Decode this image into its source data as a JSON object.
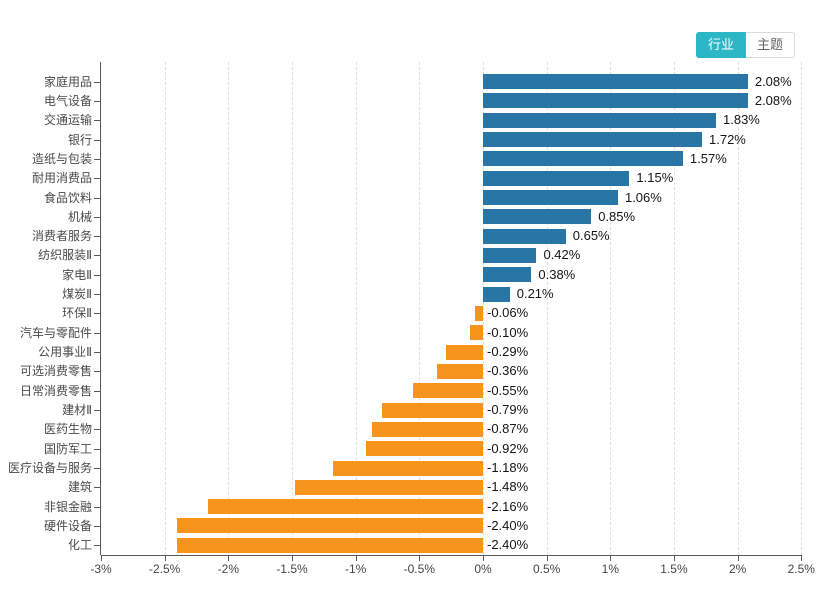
{
  "toggle": {
    "industry_label": "行业",
    "theme_label": "主题"
  },
  "colors": {
    "positive_bar": "#2776A6",
    "negative_bar": "#F7941E",
    "toggle_active_bg": "#2BB7C5",
    "axis_line": "#595959",
    "grid_line": "#e0e0e0",
    "category_text": "#4a4a4a",
    "value_text": "#151515",
    "tick_text": "#454545"
  },
  "chart_data": {
    "type": "bar",
    "orientation": "horizontal",
    "title": "",
    "xlabel": "",
    "ylabel": "",
    "xlim": [
      -3,
      2.5
    ],
    "grid": "dashed-vertical",
    "legend": "none",
    "categories": [
      "家庭用品",
      "电气设备",
      "交通运输",
      "银行",
      "造纸与包装",
      "耐用消费品",
      "食品饮料",
      "机械",
      "消费者服务",
      "纺织服装Ⅱ",
      "家电Ⅱ",
      "煤炭Ⅱ",
      "环保Ⅱ",
      "汽车与零配件",
      "公用事业Ⅱ",
      "可选消费零售",
      "日常消费零售",
      "建材Ⅱ",
      "医药生物",
      "国防军工",
      "医疗设备与服务",
      "建筑",
      "非银金融",
      "硬件设备",
      "化工"
    ],
    "values": [
      2.08,
      2.08,
      1.83,
      1.72,
      1.57,
      1.15,
      1.06,
      0.85,
      0.65,
      0.42,
      0.38,
      0.21,
      -0.06,
      -0.1,
      -0.29,
      -0.36,
      -0.55,
      -0.79,
      -0.87,
      -0.92,
      -1.18,
      -1.48,
      -2.16,
      -2.4,
      -2.4
    ],
    "value_labels": [
      "2.08%",
      "2.08%",
      "1.83%",
      "1.72%",
      "1.57%",
      "1.15%",
      "1.06%",
      "0.85%",
      "0.65%",
      "0.42%",
      "0.38%",
      "0.21%",
      "-0.06%",
      "-0.10%",
      "-0.29%",
      "-0.36%",
      "-0.55%",
      "-0.79%",
      "-0.87%",
      "-0.92%",
      "-1.18%",
      "-1.48%",
      "-2.16%",
      "-2.40%",
      "-2.40%"
    ],
    "x_tick_values": [
      -3,
      -2.5,
      -2,
      -1.5,
      -1,
      -0.5,
      0,
      0.5,
      1,
      1.5,
      2,
      2.5
    ],
    "x_ticks": [
      "-3%",
      "-2.5%",
      "-2%",
      "-1.5%",
      "-1%",
      "-0.5%",
      "0%",
      "0.5%",
      "1%",
      "1.5%",
      "2%",
      "2.5%"
    ]
  }
}
